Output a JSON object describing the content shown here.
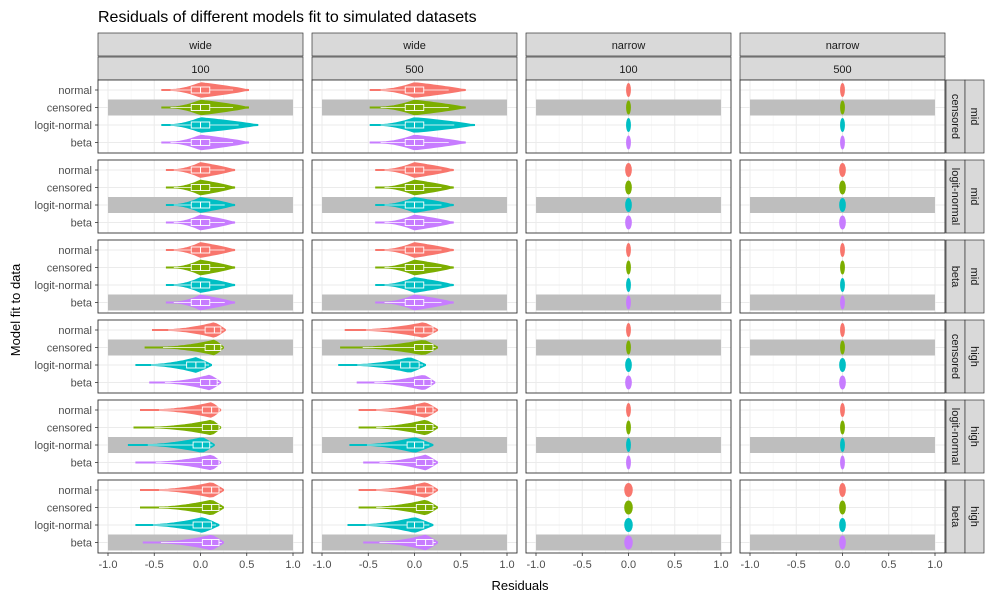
{
  "colors": {
    "normal": "#F8766D",
    "censored": "#7CAE00",
    "logit-normal": "#00BFC4",
    "beta": "#C77CFF",
    "strip_fill": "#d9d9d9",
    "highlight": "#bebebe",
    "grid": "#ebebeb"
  },
  "chart_data": {
    "type": "violin",
    "title": "Residuals of different models fit to simulated datasets",
    "xlabel": "Residuals",
    "ylabel": "Model fit to data",
    "xlim": [
      -1.0,
      1.0
    ],
    "x_ticks": [
      "-1.0",
      "-0.5",
      "0.0",
      "0.5",
      "1.0"
    ],
    "x_tick_values": [
      -1.0,
      -0.5,
      0.0,
      0.5,
      1.0
    ],
    "grid": true,
    "models": [
      "normal",
      "censored",
      "logit-normal",
      "beta"
    ],
    "columns": [
      {
        "spread": "wide",
        "n": "100"
      },
      {
        "spread": "wide",
        "n": "500"
      },
      {
        "spread": "narrow",
        "n": "100"
      },
      {
        "spread": "narrow",
        "n": "500"
      }
    ],
    "rows": [
      {
        "true_model": "censored",
        "location": "mid",
        "highlight": "censored",
        "cells": [
          [
            {
              "lo": -0.42,
              "hi": 0.52,
              "median": 0.0,
              "q1": -0.1,
              "q3": 0.1
            },
            {
              "lo": -0.42,
              "hi": 0.52,
              "median": 0.0,
              "q1": -0.1,
              "q3": 0.1
            },
            {
              "lo": -0.42,
              "hi": 0.62,
              "median": 0.0,
              "q1": -0.1,
              "q3": 0.1
            },
            {
              "lo": -0.42,
              "hi": 0.52,
              "median": 0.0,
              "q1": -0.1,
              "q3": 0.1
            }
          ],
          [
            {
              "lo": -0.48,
              "hi": 0.55,
              "median": 0.0,
              "q1": -0.1,
              "q3": 0.1
            },
            {
              "lo": -0.48,
              "hi": 0.55,
              "median": 0.0,
              "q1": -0.1,
              "q3": 0.1
            },
            {
              "lo": -0.48,
              "hi": 0.65,
              "median": 0.0,
              "q1": -0.1,
              "q3": 0.1
            },
            {
              "lo": -0.48,
              "hi": 0.55,
              "median": 0.0,
              "q1": -0.1,
              "q3": 0.1
            }
          ],
          [
            {
              "lo": -0.01,
              "hi": 0.01,
              "median": 0.0,
              "q1": 0.0,
              "q3": 0.0
            },
            {
              "lo": -0.01,
              "hi": 0.01,
              "median": 0.0,
              "q1": 0.0,
              "q3": 0.0
            },
            {
              "lo": -0.01,
              "hi": 0.01,
              "median": 0.0,
              "q1": 0.0,
              "q3": 0.0
            },
            {
              "lo": -0.01,
              "hi": 0.01,
              "median": 0.0,
              "q1": 0.0,
              "q3": 0.0
            }
          ],
          [
            {
              "lo": -0.01,
              "hi": 0.01,
              "median": 0.0,
              "q1": 0.0,
              "q3": 0.0
            },
            {
              "lo": -0.01,
              "hi": 0.01,
              "median": 0.0,
              "q1": 0.0,
              "q3": 0.0
            },
            {
              "lo": -0.01,
              "hi": 0.01,
              "median": 0.0,
              "q1": 0.0,
              "q3": 0.0
            },
            {
              "lo": -0.01,
              "hi": 0.01,
              "median": 0.0,
              "q1": 0.0,
              "q3": 0.0
            }
          ]
        ]
      },
      {
        "true_model": "logit-normal",
        "location": "mid",
        "highlight": "logit-normal",
        "cells": [
          [
            {
              "lo": -0.37,
              "hi": 0.37,
              "median": 0.0,
              "q1": -0.1,
              "q3": 0.1
            },
            {
              "lo": -0.37,
              "hi": 0.37,
              "median": 0.0,
              "q1": -0.1,
              "q3": 0.1
            },
            {
              "lo": -0.37,
              "hi": 0.37,
              "median": 0.0,
              "q1": -0.1,
              "q3": 0.1
            },
            {
              "lo": -0.37,
              "hi": 0.37,
              "median": 0.0,
              "q1": -0.1,
              "q3": 0.1
            }
          ],
          [
            {
              "lo": -0.42,
              "hi": 0.42,
              "median": 0.0,
              "q1": -0.1,
              "q3": 0.1
            },
            {
              "lo": -0.42,
              "hi": 0.42,
              "median": 0.0,
              "q1": -0.1,
              "q3": 0.1
            },
            {
              "lo": -0.42,
              "hi": 0.42,
              "median": 0.0,
              "q1": -0.1,
              "q3": 0.1
            },
            {
              "lo": -0.42,
              "hi": 0.42,
              "median": 0.0,
              "q1": -0.1,
              "q3": 0.1
            }
          ],
          [
            {
              "lo": -0.02,
              "hi": 0.02,
              "median": 0.0,
              "q1": 0.0,
              "q3": 0.0
            },
            {
              "lo": -0.02,
              "hi": 0.02,
              "median": 0.0,
              "q1": 0.0,
              "q3": 0.0
            },
            {
              "lo": -0.02,
              "hi": 0.02,
              "median": 0.0,
              "q1": 0.0,
              "q3": 0.0
            },
            {
              "lo": -0.02,
              "hi": 0.02,
              "median": 0.0,
              "q1": 0.0,
              "q3": 0.0
            }
          ],
          [
            {
              "lo": -0.02,
              "hi": 0.02,
              "median": 0.0,
              "q1": 0.0,
              "q3": 0.0
            },
            {
              "lo": -0.02,
              "hi": 0.02,
              "median": 0.0,
              "q1": 0.0,
              "q3": 0.0
            },
            {
              "lo": -0.02,
              "hi": 0.02,
              "median": 0.0,
              "q1": 0.0,
              "q3": 0.0
            },
            {
              "lo": -0.02,
              "hi": 0.02,
              "median": 0.0,
              "q1": 0.0,
              "q3": 0.0
            }
          ]
        ]
      },
      {
        "true_model": "beta",
        "location": "mid",
        "highlight": "beta",
        "cells": [
          [
            {
              "lo": -0.37,
              "hi": 0.37,
              "median": 0.0,
              "q1": -0.1,
              "q3": 0.1
            },
            {
              "lo": -0.37,
              "hi": 0.37,
              "median": 0.0,
              "q1": -0.1,
              "q3": 0.1
            },
            {
              "lo": -0.37,
              "hi": 0.37,
              "median": 0.0,
              "q1": -0.1,
              "q3": 0.1
            },
            {
              "lo": -0.37,
              "hi": 0.37,
              "median": 0.0,
              "q1": -0.1,
              "q3": 0.1
            }
          ],
          [
            {
              "lo": -0.42,
              "hi": 0.42,
              "median": 0.0,
              "q1": -0.1,
              "q3": 0.1
            },
            {
              "lo": -0.42,
              "hi": 0.42,
              "median": 0.0,
              "q1": -0.1,
              "q3": 0.1
            },
            {
              "lo": -0.42,
              "hi": 0.42,
              "median": 0.0,
              "q1": -0.1,
              "q3": 0.1
            },
            {
              "lo": -0.42,
              "hi": 0.42,
              "median": 0.0,
              "q1": -0.1,
              "q3": 0.1
            }
          ],
          [
            {
              "lo": -0.01,
              "hi": 0.01,
              "median": 0.0,
              "q1": 0.0,
              "q3": 0.0
            },
            {
              "lo": -0.01,
              "hi": 0.01,
              "median": 0.0,
              "q1": 0.0,
              "q3": 0.0
            },
            {
              "lo": -0.01,
              "hi": 0.01,
              "median": 0.0,
              "q1": 0.0,
              "q3": 0.0
            },
            {
              "lo": -0.01,
              "hi": 0.01,
              "median": 0.0,
              "q1": 0.0,
              "q3": 0.0
            }
          ],
          [
            {
              "lo": -0.01,
              "hi": 0.01,
              "median": 0.0,
              "q1": 0.0,
              "q3": 0.0
            },
            {
              "lo": -0.01,
              "hi": 0.01,
              "median": 0.0,
              "q1": 0.0,
              "q3": 0.0
            },
            {
              "lo": -0.01,
              "hi": 0.01,
              "median": 0.0,
              "q1": 0.0,
              "q3": 0.0
            },
            {
              "lo": -0.01,
              "hi": 0.01,
              "median": 0.0,
              "q1": 0.0,
              "q3": 0.0
            }
          ]
        ]
      },
      {
        "true_model": "censored",
        "location": "high",
        "highlight": "censored",
        "cells": [
          [
            {
              "lo": -0.52,
              "hi": 0.27,
              "median": 0.15,
              "q1": 0.05,
              "q3": 0.22
            },
            {
              "lo": -0.6,
              "hi": 0.25,
              "median": 0.15,
              "q1": 0.05,
              "q3": 0.22
            },
            {
              "lo": -0.7,
              "hi": 0.12,
              "median": -0.05,
              "q1": -0.15,
              "q3": 0.05
            },
            {
              "lo": -0.55,
              "hi": 0.22,
              "median": 0.1,
              "q1": 0.0,
              "q3": 0.18
            }
          ],
          [
            {
              "lo": -0.75,
              "hi": 0.25,
              "median": 0.1,
              "q1": 0.0,
              "q3": 0.2
            },
            {
              "lo": -0.8,
              "hi": 0.25,
              "median": 0.1,
              "q1": 0.0,
              "q3": 0.2
            },
            {
              "lo": -0.82,
              "hi": 0.12,
              "median": -0.05,
              "q1": -0.15,
              "q3": 0.05
            },
            {
              "lo": -0.62,
              "hi": 0.22,
              "median": 0.1,
              "q1": 0.0,
              "q3": 0.18
            }
          ],
          [
            {
              "lo": -0.01,
              "hi": 0.01,
              "median": 0.0,
              "q1": 0.0,
              "q3": 0.0
            },
            {
              "lo": -0.01,
              "hi": 0.01,
              "median": 0.0,
              "q1": 0.0,
              "q3": 0.0
            },
            {
              "lo": -0.02,
              "hi": 0.02,
              "median": 0.0,
              "q1": 0.0,
              "q3": 0.0
            },
            {
              "lo": -0.02,
              "hi": 0.02,
              "median": 0.0,
              "q1": 0.0,
              "q3": 0.0
            }
          ],
          [
            {
              "lo": -0.01,
              "hi": 0.01,
              "median": 0.0,
              "q1": 0.0,
              "q3": 0.0
            },
            {
              "lo": -0.01,
              "hi": 0.01,
              "median": 0.0,
              "q1": 0.0,
              "q3": 0.0
            },
            {
              "lo": -0.02,
              "hi": 0.02,
              "median": 0.0,
              "q1": 0.0,
              "q3": 0.0
            },
            {
              "lo": -0.02,
              "hi": 0.02,
              "median": 0.0,
              "q1": 0.0,
              "q3": 0.0
            }
          ]
        ]
      },
      {
        "true_model": "logit-normal",
        "location": "high",
        "highlight": "logit-normal",
        "cells": [
          [
            {
              "lo": -0.65,
              "hi": 0.22,
              "median": 0.12,
              "q1": 0.02,
              "q3": 0.2
            },
            {
              "lo": -0.72,
              "hi": 0.22,
              "median": 0.12,
              "q1": 0.02,
              "q3": 0.2
            },
            {
              "lo": -0.78,
              "hi": 0.15,
              "median": 0.02,
              "q1": -0.08,
              "q3": 0.1
            },
            {
              "lo": -0.7,
              "hi": 0.22,
              "median": 0.12,
              "q1": 0.02,
              "q3": 0.2
            }
          ],
          [
            {
              "lo": -0.6,
              "hi": 0.25,
              "median": 0.12,
              "q1": 0.02,
              "q3": 0.2
            },
            {
              "lo": -0.6,
              "hi": 0.25,
              "median": 0.12,
              "q1": 0.02,
              "q3": 0.2
            },
            {
              "lo": -0.7,
              "hi": 0.2,
              "median": 0.0,
              "q1": -0.08,
              "q3": 0.1
            },
            {
              "lo": -0.55,
              "hi": 0.25,
              "median": 0.12,
              "q1": 0.02,
              "q3": 0.2
            }
          ],
          [
            {
              "lo": -0.01,
              "hi": 0.01,
              "median": 0.0,
              "q1": 0.0,
              "q3": 0.0
            },
            {
              "lo": -0.01,
              "hi": 0.01,
              "median": 0.0,
              "q1": 0.0,
              "q3": 0.0
            },
            {
              "lo": -0.01,
              "hi": 0.01,
              "median": 0.0,
              "q1": 0.0,
              "q3": 0.0
            },
            {
              "lo": -0.01,
              "hi": 0.01,
              "median": 0.0,
              "q1": 0.0,
              "q3": 0.0
            }
          ],
          [
            {
              "lo": -0.01,
              "hi": 0.01,
              "median": 0.0,
              "q1": 0.0,
              "q3": 0.0
            },
            {
              "lo": -0.01,
              "hi": 0.01,
              "median": 0.0,
              "q1": 0.0,
              "q3": 0.0
            },
            {
              "lo": -0.01,
              "hi": 0.01,
              "median": 0.0,
              "q1": 0.0,
              "q3": 0.0
            },
            {
              "lo": -0.01,
              "hi": 0.01,
              "median": 0.0,
              "q1": 0.0,
              "q3": 0.0
            }
          ]
        ]
      },
      {
        "true_model": "beta",
        "location": "high",
        "highlight": "beta",
        "cells": [
          [
            {
              "lo": -0.65,
              "hi": 0.25,
              "median": 0.12,
              "q1": 0.02,
              "q3": 0.2
            },
            {
              "lo": -0.65,
              "hi": 0.25,
              "median": 0.12,
              "q1": 0.02,
              "q3": 0.2
            },
            {
              "lo": -0.7,
              "hi": 0.2,
              "median": 0.02,
              "q1": -0.08,
              "q3": 0.12
            },
            {
              "lo": -0.62,
              "hi": 0.25,
              "median": 0.12,
              "q1": 0.02,
              "q3": 0.2
            }
          ],
          [
            {
              "lo": -0.6,
              "hi": 0.25,
              "median": 0.12,
              "q1": 0.02,
              "q3": 0.2
            },
            {
              "lo": -0.6,
              "hi": 0.25,
              "median": 0.12,
              "q1": 0.02,
              "q3": 0.2
            },
            {
              "lo": -0.72,
              "hi": 0.2,
              "median": 0.0,
              "q1": -0.08,
              "q3": 0.1
            },
            {
              "lo": -0.55,
              "hi": 0.25,
              "median": 0.12,
              "q1": 0.02,
              "q3": 0.2
            }
          ],
          [
            {
              "lo": -0.03,
              "hi": 0.03,
              "median": 0.0,
              "q1": 0.0,
              "q3": 0.0
            },
            {
              "lo": -0.03,
              "hi": 0.03,
              "median": 0.0,
              "q1": 0.0,
              "q3": 0.0
            },
            {
              "lo": -0.03,
              "hi": 0.03,
              "median": 0.0,
              "q1": 0.0,
              "q3": 0.0
            },
            {
              "lo": -0.03,
              "hi": 0.03,
              "median": 0.0,
              "q1": 0.0,
              "q3": 0.0
            }
          ],
          [
            {
              "lo": -0.02,
              "hi": 0.02,
              "median": 0.0,
              "q1": 0.0,
              "q3": 0.0
            },
            {
              "lo": -0.02,
              "hi": 0.02,
              "median": 0.0,
              "q1": 0.0,
              "q3": 0.0
            },
            {
              "lo": -0.02,
              "hi": 0.02,
              "median": 0.0,
              "q1": 0.0,
              "q3": 0.0
            },
            {
              "lo": -0.02,
              "hi": 0.02,
              "median": 0.0,
              "q1": 0.0,
              "q3": 0.0
            }
          ]
        ]
      }
    ]
  }
}
